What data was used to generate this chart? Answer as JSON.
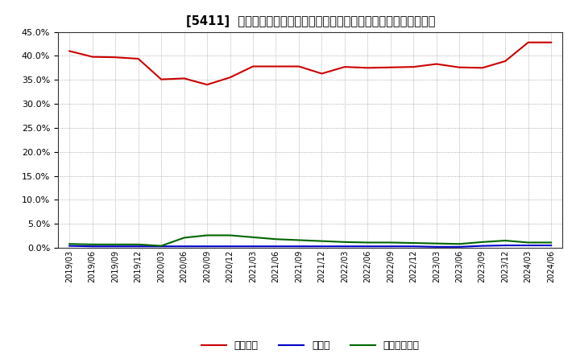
{
  "title": "[5411]  自己資本、のれん、繰延税金資産の総資産に対する比率の推移",
  "x_labels": [
    "2019/03",
    "2019/06",
    "2019/09",
    "2019/12",
    "2020/03",
    "2020/06",
    "2020/09",
    "2020/12",
    "2021/03",
    "2021/06",
    "2021/09",
    "2021/12",
    "2022/03",
    "2022/06",
    "2022/09",
    "2022/12",
    "2023/03",
    "2023/06",
    "2023/09",
    "2023/12",
    "2024/03",
    "2024/06"
  ],
  "jikoshihon": [
    41.0,
    39.8,
    39.7,
    39.4,
    35.1,
    35.3,
    34.0,
    35.5,
    37.8,
    37.8,
    37.8,
    36.3,
    37.7,
    37.5,
    37.6,
    37.7,
    38.3,
    37.6,
    37.5,
    38.9,
    42.8,
    42.8
  ],
  "noren": [
    0.4,
    0.3,
    0.3,
    0.3,
    0.3,
    0.3,
    0.3,
    0.3,
    0.3,
    0.3,
    0.3,
    0.3,
    0.3,
    0.3,
    0.3,
    0.3,
    0.2,
    0.2,
    0.4,
    0.5,
    0.5,
    0.5
  ],
  "kurinobe": [
    0.8,
    0.7,
    0.7,
    0.7,
    0.4,
    2.1,
    2.6,
    2.6,
    2.2,
    1.8,
    1.6,
    1.4,
    1.2,
    1.1,
    1.1,
    1.0,
    0.9,
    0.8,
    1.2,
    1.5,
    1.1,
    1.1
  ],
  "jiko_color": "#cc0000",
  "noren_color": "#0000cc",
  "kurinobe_color": "#006600",
  "bg_color": "#ffffff",
  "plot_bg_color": "#ffffff",
  "grid_color": "#999999",
  "ylim": [
    0.0,
    45.0
  ],
  "yticks": [
    0.0,
    5.0,
    10.0,
    15.0,
    20.0,
    25.0,
    30.0,
    35.0,
    40.0,
    45.0
  ],
  "legend_jiko": "自己資本",
  "legend_noren": "のれん",
  "legend_kurinobe": "繰延税金資産"
}
